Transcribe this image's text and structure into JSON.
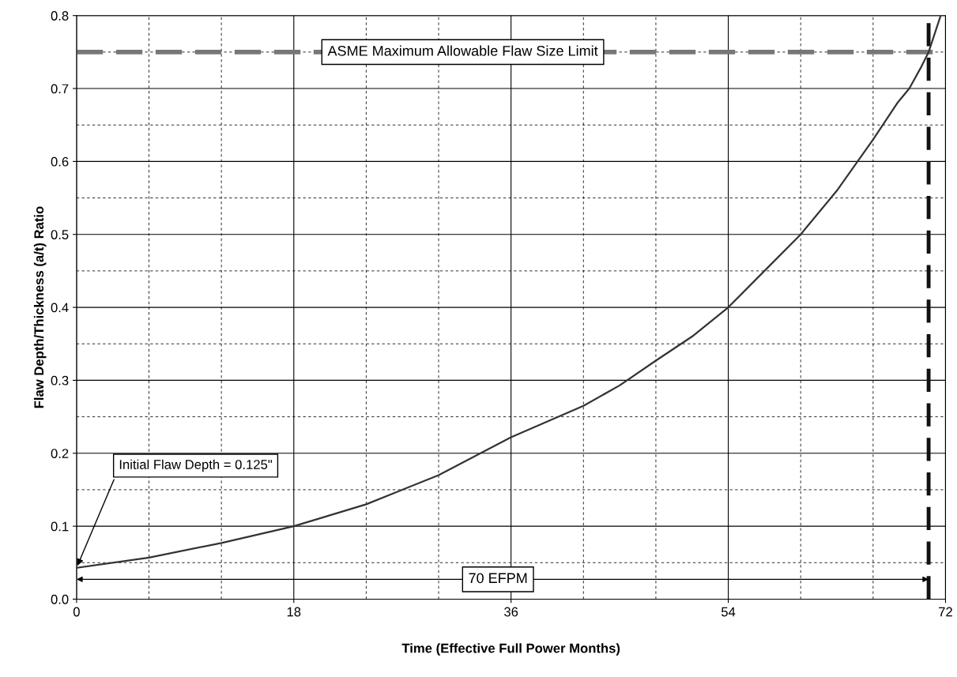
{
  "chart_data": {
    "type": "line",
    "xlabel": "Time (Effective Full Power Months)",
    "ylabel": "Flaw Depth/Thickness (a/t) Ratio",
    "series": [
      {
        "color": "#333333",
        "x": [
          0,
          6,
          12,
          18,
          24,
          30,
          33,
          36,
          42,
          45,
          48,
          51,
          54,
          57,
          60,
          63,
          66,
          68,
          69,
          70,
          70.6,
          71.6
        ],
        "values": [
          0.043,
          0.057,
          0.077,
          0.1,
          0.13,
          0.17,
          0.196,
          0.222,
          0.265,
          0.293,
          0.327,
          0.36,
          0.4,
          0.45,
          0.5,
          0.56,
          0.63,
          0.68,
          0.7,
          0.73,
          0.75,
          0.8
        ]
      }
    ],
    "xlim": [
      0,
      72
    ],
    "xticks": [
      0,
      18,
      36,
      54,
      72
    ],
    "ylim": [
      0,
      0.8
    ],
    "yticks": [
      {
        "value": 0,
        "label": "0.0"
      },
      0.1,
      0.2,
      0.3,
      0.4,
      0.5,
      0.6,
      0.7,
      0.8
    ],
    "grid": true,
    "marker": "none",
    "line_style": "solid",
    "ref_lines": [
      {
        "axis": "y",
        "value": 0.75,
        "label": "ASME Maximum Allowable Flaw Size Limit",
        "color": "#777777",
        "line_style": "dashed"
      },
      {
        "axis": "x",
        "value": 70.6,
        "color": "#111111",
        "line_style": "dashed"
      }
    ],
    "annotations": [
      {
        "text": "Initial Flaw Depth = 0.125\"",
        "x": 0,
        "y": 0.043
      },
      "70 EFPM"
    ]
  }
}
